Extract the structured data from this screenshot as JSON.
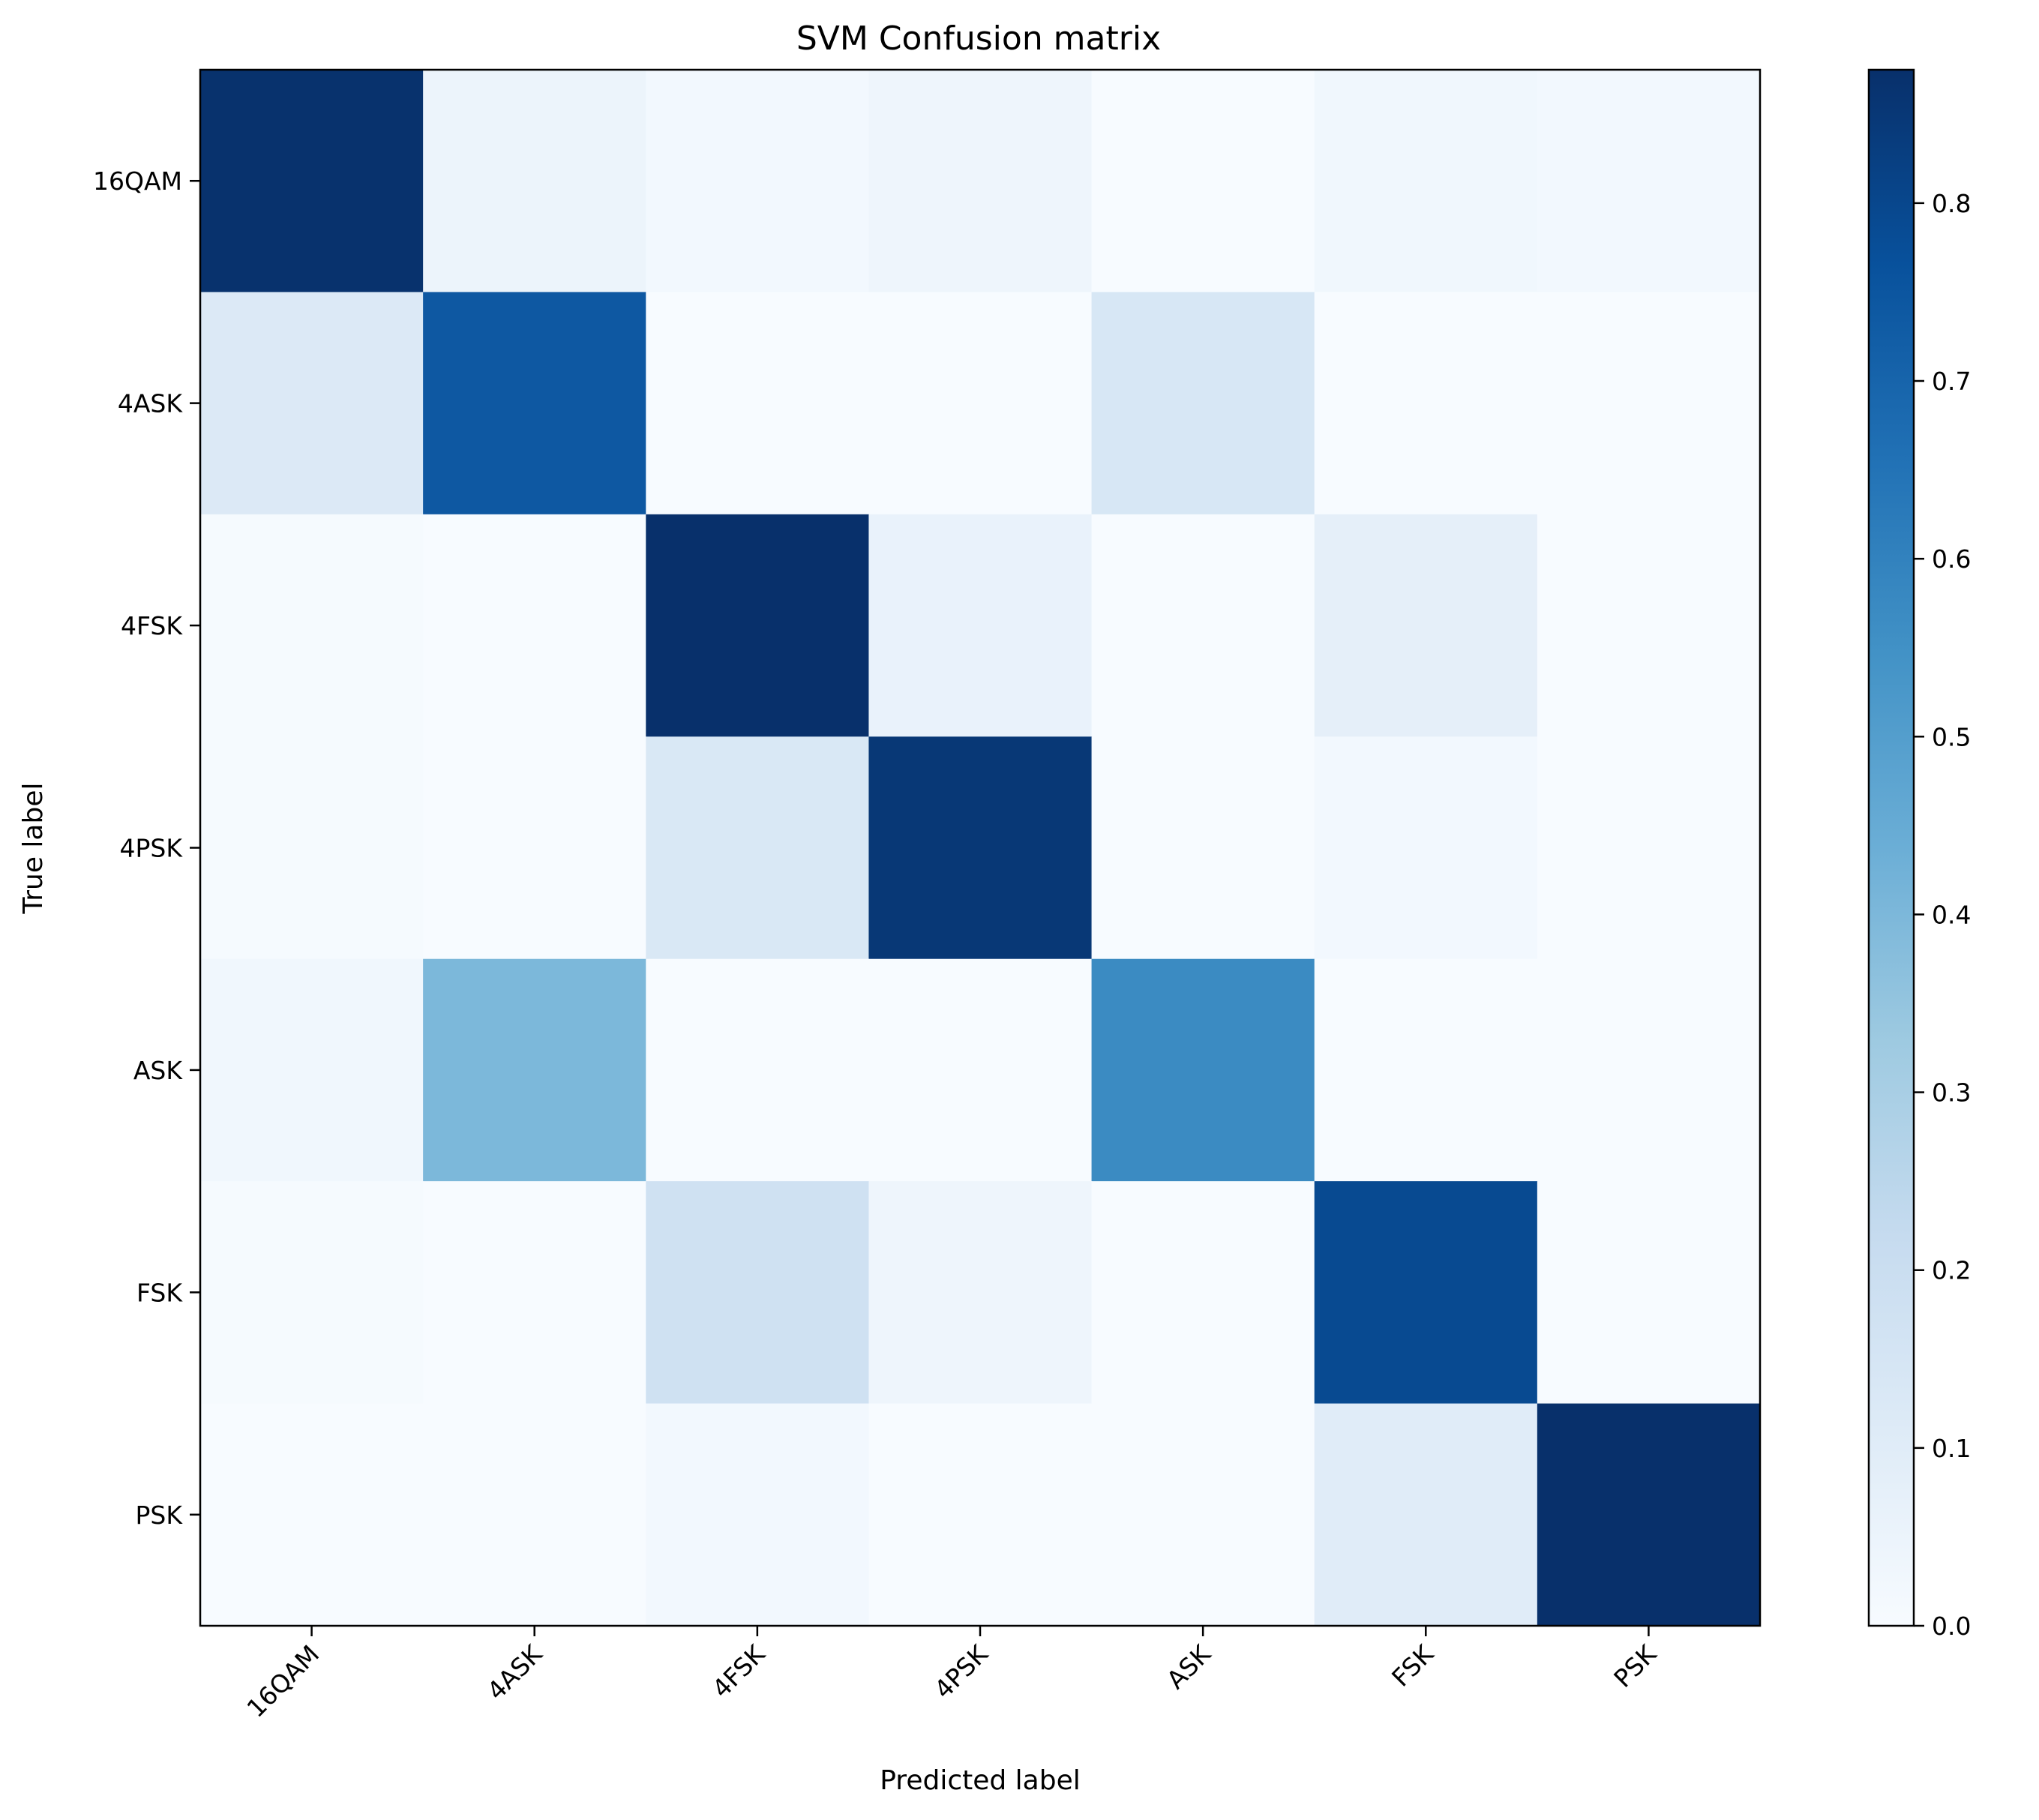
{
  "chart_data": {
    "type": "heatmap",
    "title": "SVM Confusion matrix",
    "xlabel": "Predicted label",
    "ylabel": "True label",
    "x_categories": [
      "16QAM",
      "4ASK",
      "4FSK",
      "4PSK",
      "ASK",
      "FSK",
      "PSK"
    ],
    "y_categories": [
      "16QAM",
      "4ASK",
      "4FSK",
      "4PSK",
      "ASK",
      "FSK",
      "PSK"
    ],
    "values": [
      [
        0.87,
        0.05,
        0.02,
        0.04,
        0.0,
        0.03,
        0.02
      ],
      [
        0.12,
        0.74,
        0.0,
        0.0,
        0.14,
        0.0,
        0.0
      ],
      [
        0.01,
        0.0,
        0.88,
        0.06,
        0.0,
        0.08,
        0.0
      ],
      [
        0.01,
        0.0,
        0.13,
        0.85,
        0.0,
        0.02,
        0.0
      ],
      [
        0.03,
        0.4,
        0.0,
        0.0,
        0.57,
        0.0,
        0.0
      ],
      [
        0.01,
        0.0,
        0.18,
        0.04,
        0.0,
        0.79,
        0.0
      ],
      [
        0.0,
        0.0,
        0.02,
        0.0,
        0.0,
        0.1,
        0.88
      ]
    ],
    "colorbar": {
      "colormap": "Blues",
      "range": [
        0.0,
        0.875
      ],
      "ticks": [
        0.0,
        0.1,
        0.2,
        0.3,
        0.4,
        0.5,
        0.6,
        0.7,
        0.8
      ],
      "tick_labels": [
        "0.0",
        "0.1",
        "0.2",
        "0.3",
        "0.4",
        "0.5",
        "0.6",
        "0.7",
        "0.8"
      ]
    },
    "colormap_stops": [
      "#f7fbff",
      "#deebf7",
      "#c6dbef",
      "#9ecae1",
      "#6baed6",
      "#4292c6",
      "#2171b5",
      "#08519c",
      "#08306b"
    ],
    "x_tick_rotation": 45,
    "grid": false
  }
}
